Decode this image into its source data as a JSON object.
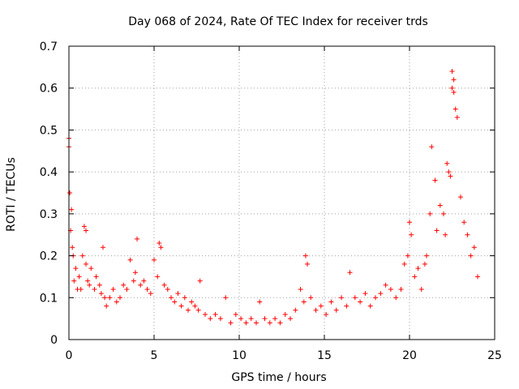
{
  "chart_data": {
    "type": "scatter",
    "title": "Day 068 of 2024, Rate Of TEC Index for receiver trds",
    "xlabel": "GPS time / hours",
    "ylabel": "ROTI / TECUs",
    "xlim": [
      0,
      25
    ],
    "ylim": [
      0,
      0.7
    ],
    "x_ticks": [
      0,
      5,
      10,
      15,
      20,
      25
    ],
    "x_tick_labels": [
      "0",
      "5",
      "10",
      "15",
      "20",
      "25"
    ],
    "y_ticks": [
      0,
      0.1,
      0.2,
      0.3,
      0.4,
      0.5,
      0.6,
      0.7
    ],
    "y_tick_labels": [
      "0",
      "0.1",
      "0.2",
      "0.3",
      "0.4",
      "0.5",
      "0.6",
      "0.7"
    ],
    "grid": true,
    "marker": "plus",
    "color": "#ff0000",
    "series": [
      {
        "x": [
          0.0,
          0.0,
          0.05,
          0.1,
          0.15,
          0.2,
          0.25,
          0.3,
          0.4,
          0.5,
          0.6,
          0.7,
          0.8,
          0.9,
          1.0,
          1.0,
          1.1,
          1.2,
          1.3,
          1.5,
          1.6,
          1.8,
          1.9,
          2.0,
          2.1,
          2.2,
          2.4,
          2.6,
          2.8,
          3.0,
          3.2,
          3.4,
          3.6,
          3.8,
          3.9,
          4.0,
          4.2,
          4.4,
          4.6,
          4.8,
          5.0,
          5.2,
          5.3,
          5.4,
          5.6,
          5.8,
          6.0,
          6.2,
          6.4,
          6.6,
          6.8,
          7.0,
          7.2,
          7.4,
          7.6,
          7.7,
          8.0,
          8.3,
          8.6,
          8.9,
          9.2,
          9.5,
          9.8,
          10.1,
          10.4,
          10.7,
          11.0,
          11.2,
          11.5,
          11.8,
          12.1,
          12.4,
          12.7,
          13.0,
          13.3,
          13.6,
          13.8,
          13.9,
          14.0,
          14.2,
          14.5,
          14.8,
          15.1,
          15.4,
          15.7,
          16.0,
          16.3,
          16.5,
          16.8,
          17.1,
          17.4,
          17.7,
          18.0,
          18.3,
          18.6,
          18.9,
          19.2,
          19.5,
          19.7,
          19.9,
          20.0,
          20.1,
          20.3,
          20.5,
          20.7,
          20.9,
          21.0,
          21.2,
          21.3,
          21.5,
          21.6,
          21.8,
          22.0,
          22.1,
          22.2,
          22.3,
          22.4,
          22.5,
          22.5,
          22.6,
          22.6,
          22.7,
          22.8,
          23.0,
          23.2,
          23.4,
          23.6,
          23.8,
          24.0
        ],
        "y": [
          0.48,
          0.46,
          0.35,
          0.26,
          0.31,
          0.22,
          0.2,
          0.14,
          0.17,
          0.12,
          0.15,
          0.12,
          0.2,
          0.27,
          0.26,
          0.18,
          0.14,
          0.13,
          0.17,
          0.12,
          0.15,
          0.13,
          0.11,
          0.22,
          0.1,
          0.08,
          0.1,
          0.12,
          0.09,
          0.1,
          0.13,
          0.12,
          0.19,
          0.14,
          0.16,
          0.24,
          0.13,
          0.14,
          0.12,
          0.11,
          0.19,
          0.15,
          0.23,
          0.22,
          0.13,
          0.12,
          0.1,
          0.09,
          0.11,
          0.08,
          0.1,
          0.07,
          0.09,
          0.08,
          0.07,
          0.14,
          0.06,
          0.05,
          0.06,
          0.05,
          0.1,
          0.04,
          0.06,
          0.05,
          0.04,
          0.05,
          0.04,
          0.09,
          0.05,
          0.04,
          0.05,
          0.04,
          0.06,
          0.05,
          0.07,
          0.12,
          0.09,
          0.2,
          0.18,
          0.1,
          0.07,
          0.08,
          0.06,
          0.09,
          0.07,
          0.1,
          0.08,
          0.16,
          0.1,
          0.09,
          0.11,
          0.08,
          0.1,
          0.11,
          0.13,
          0.12,
          0.1,
          0.12,
          0.18,
          0.2,
          0.28,
          0.25,
          0.15,
          0.17,
          0.12,
          0.18,
          0.2,
          0.3,
          0.46,
          0.38,
          0.26,
          0.32,
          0.3,
          0.25,
          0.42,
          0.4,
          0.39,
          0.6,
          0.64,
          0.62,
          0.59,
          0.55,
          0.53,
          0.34,
          0.28,
          0.25,
          0.2,
          0.22,
          0.15
        ]
      }
    ]
  }
}
